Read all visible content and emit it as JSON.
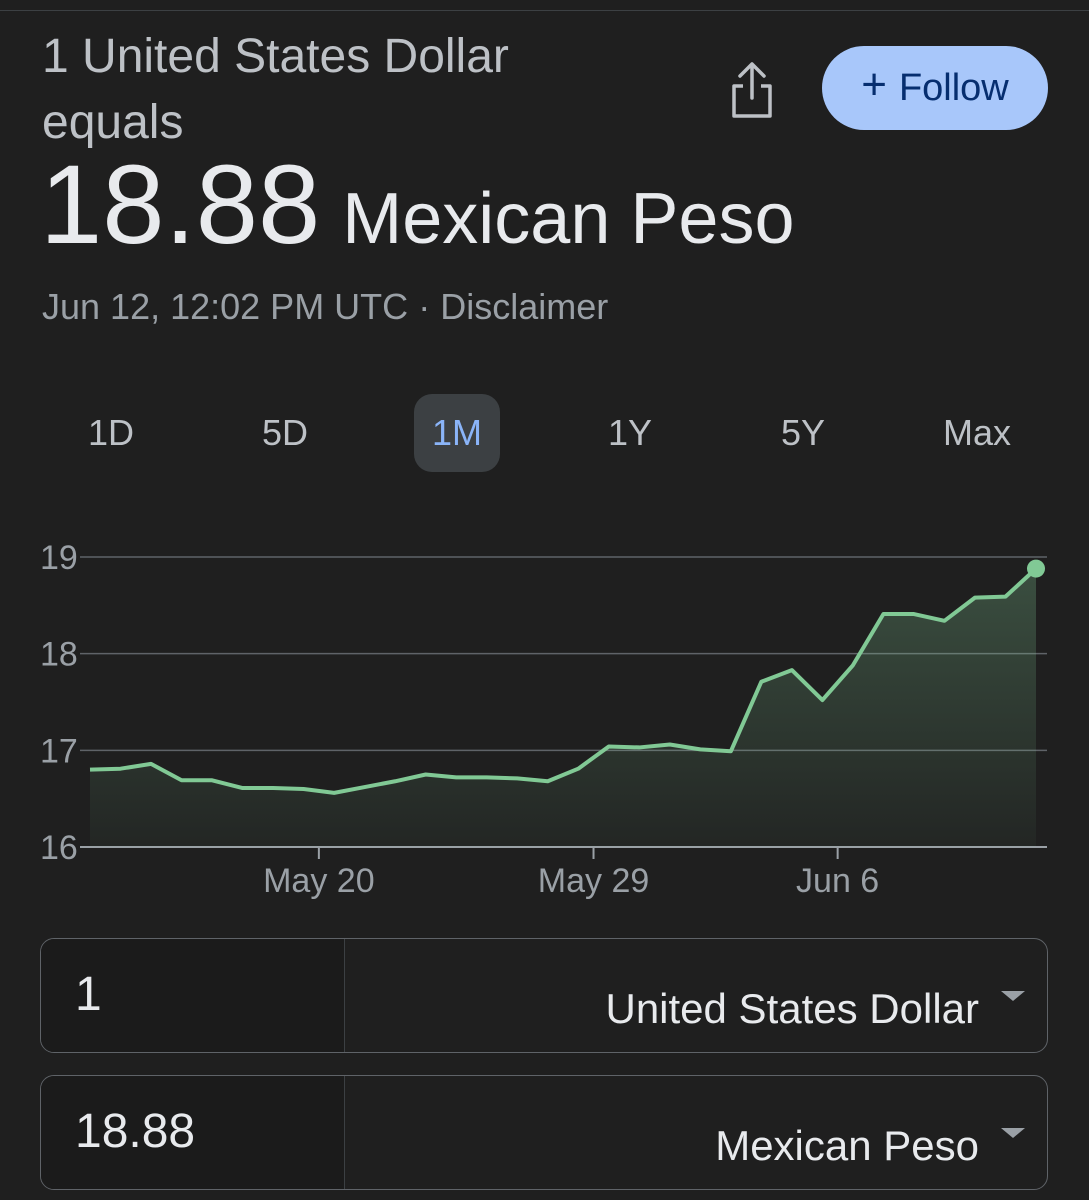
{
  "header": {
    "base": "1 United States Dollar equals",
    "value": "18.88",
    "currency": "Mexican Peso",
    "timestamp": "Jun 12, 12:02 PM UTC",
    "separator": "·",
    "disclaimer": "Disclaimer"
  },
  "follow": "Follow",
  "ranges": [
    "1D",
    "5D",
    "1M",
    "1Y",
    "5Y",
    "Max"
  ],
  "selected_range": 2,
  "chart_data": {
    "type": "line",
    "color": "#81c995",
    "grid": true,
    "x": [
      0,
      1,
      2,
      3,
      4,
      5,
      6,
      7,
      8,
      9,
      10,
      11,
      12,
      13,
      14,
      15,
      16,
      17,
      18,
      19,
      20,
      21,
      22,
      23,
      24,
      25,
      26,
      27,
      28,
      29,
      30,
      31
    ],
    "values": [
      16.8,
      16.81,
      16.86,
      16.69,
      16.69,
      16.61,
      16.61,
      16.6,
      16.56,
      16.62,
      16.68,
      16.75,
      16.72,
      16.72,
      16.71,
      16.68,
      16.81,
      17.04,
      17.03,
      17.06,
      17.01,
      16.99,
      17.71,
      17.83,
      17.52,
      17.88,
      18.41,
      18.41,
      18.34,
      18.58,
      18.59,
      18.88
    ],
    "xlim": [
      0,
      31
    ],
    "xticks": [
      {
        "value": 7.5,
        "label": "May 20"
      },
      {
        "value": 16.5,
        "label": "May 29"
      },
      {
        "value": 24.5,
        "label": "Jun 6"
      }
    ],
    "ylim": [
      16,
      19
    ],
    "yticks": [
      16,
      17,
      18,
      19
    ]
  },
  "converter": {
    "rows": [
      {
        "amount": "1",
        "currency": "United States Dollar"
      },
      {
        "amount": "18.88",
        "currency": "Mexican Peso"
      }
    ]
  }
}
